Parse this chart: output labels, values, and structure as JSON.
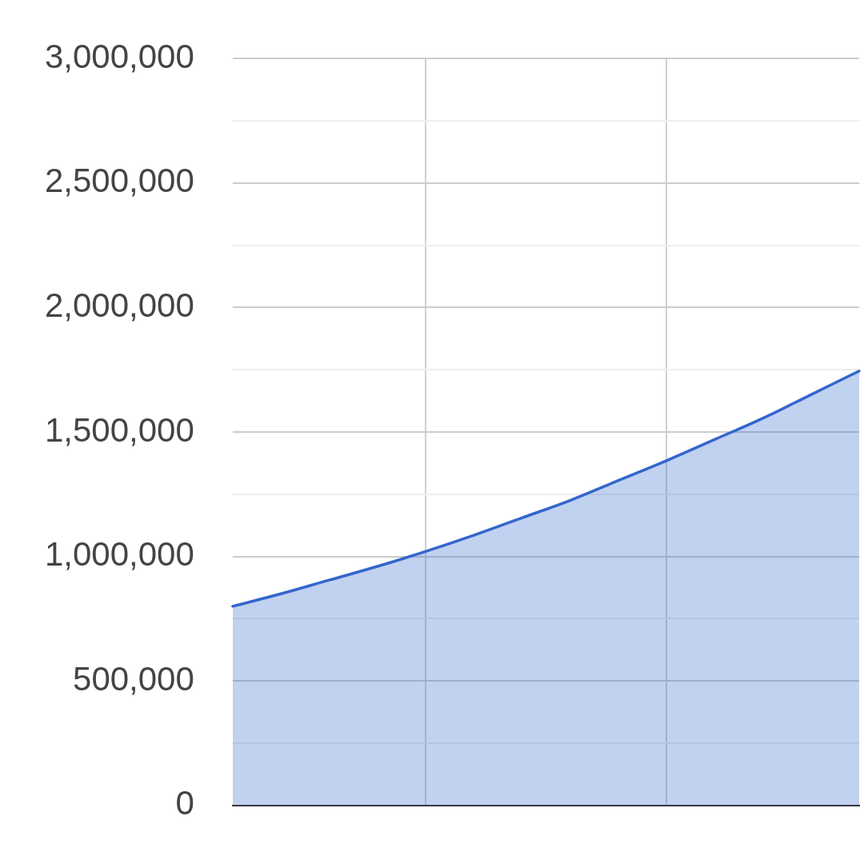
{
  "chart_data": {
    "type": "area",
    "categories": [
      null,
      null,
      null,
      null,
      null,
      null,
      null,
      null,
      null,
      null,
      null,
      null,
      null,
      null
    ],
    "series": [
      {
        "color": "#3366cc",
        "values": [
          800000,
          850000,
          905000,
          960000,
          1020000,
          1085000,
          1155000,
          1225000,
          1305000,
          1385000,
          1470000,
          1555000,
          1650000,
          1745000
        ]
      }
    ],
    "ylim": [
      0,
      3000000
    ],
    "yticks": [
      0,
      {
        "value": 250000,
        "label": null
      },
      {
        "value": 500000,
        "label": "500,000"
      },
      {
        "value": 750000,
        "label": null
      },
      {
        "value": 1000000,
        "label": "1,000,000"
      },
      {
        "value": 1250000,
        "label": null
      },
      {
        "value": 1500000,
        "label": "1,500,000"
      },
      {
        "value": 1750000,
        "label": null
      },
      {
        "value": 2000000,
        "label": "2,000,000"
      },
      {
        "value": 2250000,
        "label": null
      },
      {
        "value": 2500000,
        "label": "2,500,000"
      },
      {
        "value": 2750000,
        "label": null
      },
      {
        "value": 3000000,
        "label": "3,000,000"
      }
    ],
    "grid": true,
    "tick_labels": "y"
  }
}
